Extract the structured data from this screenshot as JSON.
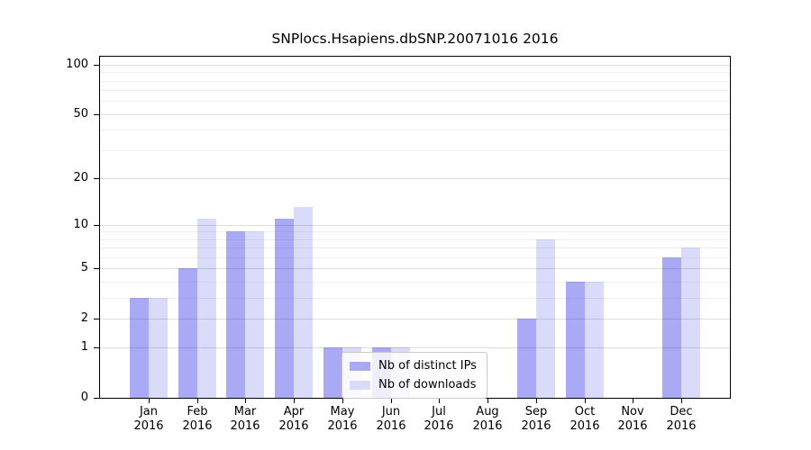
{
  "chart_data": {
    "type": "bar",
    "title": "SNPlocs.Hsapiens.dbSNP.20071016 2016",
    "categories": [
      "Jan 2016",
      "Feb 2016",
      "Mar 2016",
      "Apr 2016",
      "May 2016",
      "Jun 2016",
      "Jul 2016",
      "Aug 2016",
      "Sep 2016",
      "Oct 2016",
      "Nov 2016",
      "Dec 2016"
    ],
    "series": [
      {
        "name": "Nb of distinct IPs",
        "color": "#a9a9f5",
        "values": [
          3,
          5,
          9,
          11,
          1,
          1,
          0,
          0,
          2,
          4,
          0,
          6
        ]
      },
      {
        "name": "Nb of downloads",
        "color": "#dadaf9",
        "values": [
          3,
          11,
          9,
          13,
          1,
          1,
          0,
          0,
          8,
          4,
          0,
          7
        ]
      }
    ],
    "yscale": "log1p",
    "ylim": [
      0,
      112
    ],
    "y_ticks": [
      0,
      1,
      2,
      5,
      10,
      20,
      50,
      100
    ],
    "y_minor_gridlines": [
      3,
      4,
      6,
      7,
      8,
      9,
      30,
      40,
      60,
      70,
      80,
      90
    ],
    "grid": true,
    "legend_position": "lower center",
    "bar_group_layout": "side-by-side"
  }
}
